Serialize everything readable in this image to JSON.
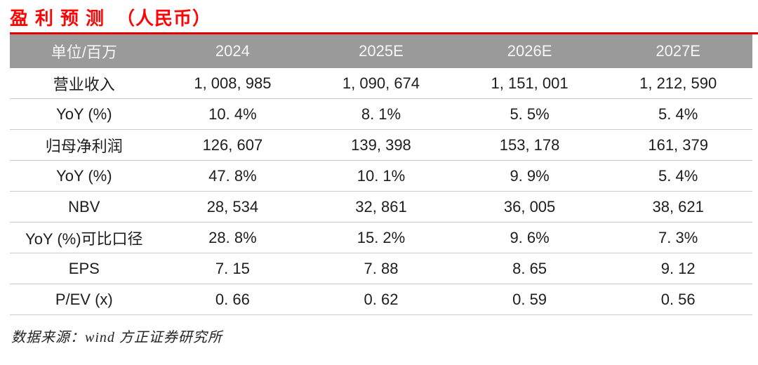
{
  "title": {
    "main": "盈利预测",
    "suffix": "（人民币）"
  },
  "colors": {
    "title_red": "#fb0505",
    "accent_line_red": "#e60000",
    "header_bg_gray": "#9a9a9a",
    "header_text": "#f6f6f6",
    "row_divider": "#cacaca",
    "body_text": "#1d1d1d"
  },
  "table": {
    "columns": [
      "单位/百万",
      "2024",
      "2025E",
      "2026E",
      "2027E"
    ],
    "rows": [
      {
        "label": "营业收入",
        "values": [
          "1, 008, 985",
          "1, 090, 674",
          "1, 151, 001",
          "1, 212, 590"
        ]
      },
      {
        "label": "YoY (%)",
        "values": [
          "10. 4%",
          "8. 1%",
          "5. 5%",
          "5. 4%"
        ]
      },
      {
        "label": "归母净利润",
        "values": [
          "126, 607",
          "139, 398",
          "153, 178",
          "161, 379"
        ]
      },
      {
        "label": "YoY (%)",
        "values": [
          "47. 8%",
          "10. 1%",
          "9. 9%",
          "5. 4%"
        ]
      },
      {
        "label": "NBV",
        "values": [
          "28, 534",
          "32, 861",
          "36, 005",
          "38, 621"
        ]
      },
      {
        "label": "YoY (%)可比口径",
        "values": [
          "28. 8%",
          "15. 2%",
          "9. 6%",
          "7. 3%"
        ]
      },
      {
        "label": "EPS",
        "values": [
          "7. 15",
          "7. 88",
          "8. 65",
          "9. 12"
        ]
      },
      {
        "label": "P/EV (x)",
        "values": [
          "0. 66",
          "0. 62",
          "0. 59",
          "0. 56"
        ]
      }
    ]
  },
  "chart_data": {
    "type": "table",
    "title": "盈利预测（人民币）",
    "unit": "单位/百万",
    "columns": [
      "2024",
      "2025E",
      "2026E",
      "2027E"
    ],
    "series": [
      {
        "name": "营业收入",
        "values": [
          1008985,
          1090674,
          1151001,
          1212590
        ]
      },
      {
        "name": "YoY (%)",
        "values": [
          10.4,
          8.1,
          5.5,
          5.4
        ]
      },
      {
        "name": "归母净利润",
        "values": [
          126607,
          139398,
          153178,
          161379
        ]
      },
      {
        "name": "YoY (%)",
        "values": [
          47.8,
          10.1,
          9.9,
          5.4
        ]
      },
      {
        "name": "NBV",
        "values": [
          28534,
          32861,
          36005,
          38621
        ]
      },
      {
        "name": "YoY (%)可比口径",
        "values": [
          28.8,
          15.2,
          9.6,
          7.3
        ]
      },
      {
        "name": "EPS",
        "values": [
          7.15,
          7.88,
          8.65,
          9.12
        ]
      },
      {
        "name": "P/EV (x)",
        "values": [
          0.66,
          0.62,
          0.59,
          0.56
        ]
      }
    ]
  },
  "footer": {
    "source": "数据来源：wind 方正证券研究所"
  }
}
